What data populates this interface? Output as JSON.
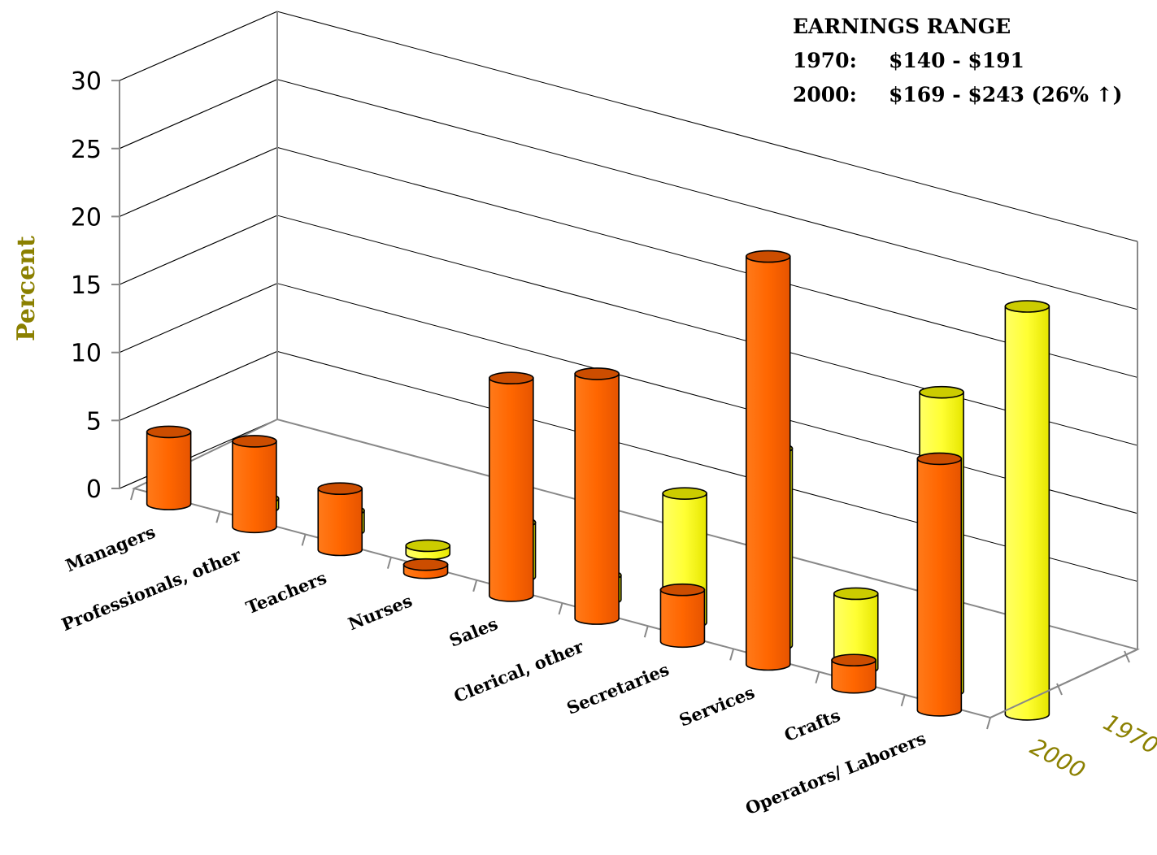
{
  "chart_data": {
    "type": "bar",
    "bar_shape": "cylinder",
    "projection": "3d",
    "ylabel": "Percent",
    "ylim": [
      0,
      30
    ],
    "yticks": [
      0,
      5,
      10,
      15,
      20,
      25,
      30
    ],
    "grid": true,
    "categories": [
      "Managers",
      "Professionals, other",
      "Teachers",
      "Nurses",
      "Sales",
      "Clerical, other",
      "Secretaries",
      "Services",
      "Crafts",
      "Operators/ Laborers"
    ],
    "series": [
      {
        "name": "1970",
        "color": "#ffff33",
        "values": [
          0.7,
          1.5,
          0.6,
          4.0,
          1.8,
          9.5,
          14.5,
          5.5,
          22.0,
          30.0
        ]
      },
      {
        "name": "2000",
        "color": "#ff6600",
        "values": [
          5.3,
          6.3,
          4.5,
          0.6,
          16.0,
          18.0,
          3.8,
          30.0,
          2.0,
          18.5
        ]
      }
    ]
  },
  "annotation": {
    "title": "EARNINGS RANGE",
    "line1_year": "1970:",
    "line1_range": "$140 - $191",
    "line2_year": "2000:",
    "line2_range": "$169 - $243 (26% ↑)"
  },
  "colors": {
    "yellow": "#ffff33",
    "orange": "#ff6600",
    "axis_label": "#8b8000"
  }
}
